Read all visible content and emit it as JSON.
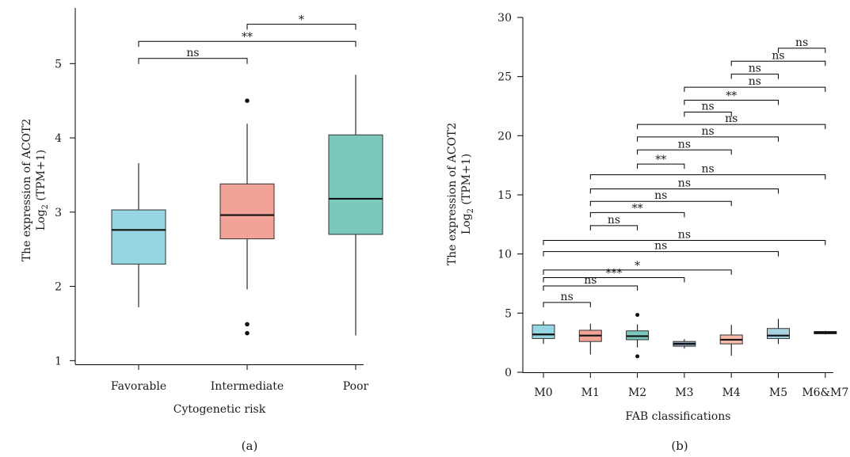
{
  "chart_data": [
    {
      "type": "box",
      "panel_label": "(a)",
      "xlabel": "Cytogenetic risk",
      "ylabel_line1": "The expression of ACOT2",
      "ylabel_line2_main": "Log",
      "ylabel_line2_sub": "2",
      "ylabel_line2_rest": " (TPM+1)",
      "ylim": [
        0.95,
        5.75
      ],
      "yticks": [
        1,
        2,
        3,
        4,
        5
      ],
      "ytick_labels": [
        "1",
        "2",
        "3",
        "4",
        "5"
      ],
      "categories": [
        "Favorable",
        "Intermediate",
        "Poor"
      ],
      "boxes": [
        {
          "category": "Favorable",
          "whisker_low": 1.72,
          "q1": 2.3,
          "median": 2.76,
          "q3": 3.03,
          "whisker_high": 3.66,
          "outliers": [],
          "color": "#96d6e3"
        },
        {
          "category": "Intermediate",
          "whisker_low": 1.96,
          "q1": 2.64,
          "median": 2.96,
          "q3": 3.38,
          "whisker_high": 4.19,
          "outliers": [
            4.5,
            1.49,
            1.37
          ],
          "color": "#f0a396"
        },
        {
          "category": "Poor",
          "whisker_low": 1.34,
          "q1": 2.7,
          "median": 3.18,
          "q3": 4.04,
          "whisker_high": 4.85,
          "outliers": [],
          "color": "#7bc9bd"
        }
      ],
      "comparisons": [
        {
          "from": 0,
          "to": 1,
          "y": 5.07,
          "label": "ns"
        },
        {
          "from": 0,
          "to": 2,
          "y": 5.3,
          "label": "**"
        },
        {
          "from": 1,
          "to": 2,
          "y": 5.53,
          "label": "*"
        }
      ]
    },
    {
      "type": "box",
      "panel_label": "(b)",
      "xlabel": "FAB classifications",
      "ylabel_line1": "The expression of ACOT2",
      "ylabel_line2_main": "Log",
      "ylabel_line2_sub": "2",
      "ylabel_line2_rest": " (TPM+1)",
      "ylim": [
        0,
        30
      ],
      "yticks": [
        0,
        5,
        10,
        15,
        20,
        25,
        30
      ],
      "ytick_labels": [
        "0",
        "5",
        "10",
        "15",
        "20",
        "25",
        "30"
      ],
      "categories": [
        "M0",
        "M1",
        "M2",
        "M3",
        "M4",
        "M5",
        "M6&M7"
      ],
      "boxes": [
        {
          "category": "M0",
          "whisker_low": 2.4,
          "q1": 2.85,
          "median": 3.2,
          "q3": 4.0,
          "whisker_high": 4.3,
          "outliers": [],
          "color": "#96d6e3"
        },
        {
          "category": "M1",
          "whisker_low": 1.5,
          "q1": 2.6,
          "median": 3.1,
          "q3": 3.55,
          "whisker_high": 4.1,
          "outliers": [],
          "color": "#f0a396"
        },
        {
          "category": "M2",
          "whisker_low": 2.1,
          "q1": 2.75,
          "median": 3.05,
          "q3": 3.5,
          "whisker_high": 4.05,
          "outliers": [
            4.85,
            1.35
          ],
          "color": "#7bc9bd"
        },
        {
          "category": "M3",
          "whisker_low": 2.0,
          "q1": 2.2,
          "median": 2.4,
          "q3": 2.6,
          "whisker_high": 2.8,
          "outliers": [],
          "color": "#8aa1c1"
        },
        {
          "category": "M4",
          "whisker_low": 1.4,
          "q1": 2.4,
          "median": 2.75,
          "q3": 3.15,
          "whisker_high": 4.0,
          "outliers": [],
          "color": "#f4b9a8"
        },
        {
          "category": "M5",
          "whisker_low": 2.4,
          "q1": 2.85,
          "median": 3.1,
          "q3": 3.7,
          "whisker_high": 4.5,
          "outliers": [],
          "color": "#a7d2e0"
        },
        {
          "category": "M6&M7",
          "whisker_low": 3.2,
          "q1": 3.25,
          "median": 3.35,
          "q3": 3.45,
          "whisker_high": 3.5,
          "outliers": [],
          "color": "#8fd0c4"
        }
      ],
      "comparisons": [
        {
          "from": 0,
          "to": 1,
          "y": 5.9,
          "label": "ns"
        },
        {
          "from": 0,
          "to": 2,
          "y": 7.3,
          "label": "ns"
        },
        {
          "from": 0,
          "to": 3,
          "y": 8.0,
          "label": "***"
        },
        {
          "from": 0,
          "to": 4,
          "y": 8.65,
          "label": "*"
        },
        {
          "from": 0,
          "to": 5,
          "y": 10.2,
          "label": "ns"
        },
        {
          "from": 0,
          "to": 6,
          "y": 11.15,
          "label": "ns"
        },
        {
          "from": 1,
          "to": 2,
          "y": 12.4,
          "label": "ns"
        },
        {
          "from": 1,
          "to": 3,
          "y": 13.5,
          "label": "**"
        },
        {
          "from": 1,
          "to": 4,
          "y": 14.45,
          "label": "ns"
        },
        {
          "from": 1,
          "to": 5,
          "y": 15.5,
          "label": "ns"
        },
        {
          "from": 1,
          "to": 6,
          "y": 16.7,
          "label": "ns"
        },
        {
          "from": 2,
          "to": 3,
          "y": 17.6,
          "label": "**"
        },
        {
          "from": 2,
          "to": 4,
          "y": 18.8,
          "label": "ns"
        },
        {
          "from": 2,
          "to": 5,
          "y": 19.9,
          "label": "ns"
        },
        {
          "from": 2,
          "to": 6,
          "y": 20.95,
          "label": "ns"
        },
        {
          "from": 3,
          "to": 4,
          "y": 22.0,
          "label": "ns"
        },
        {
          "from": 3,
          "to": 5,
          "y": 23.0,
          "label": "**"
        },
        {
          "from": 3,
          "to": 6,
          "y": 24.1,
          "label": "ns"
        },
        {
          "from": 4,
          "to": 5,
          "y": 25.2,
          "label": "ns"
        },
        {
          "from": 4,
          "to": 6,
          "y": 26.3,
          "label": "ns"
        },
        {
          "from": 5,
          "to": 6,
          "y": 27.4,
          "label": "ns"
        }
      ]
    }
  ]
}
